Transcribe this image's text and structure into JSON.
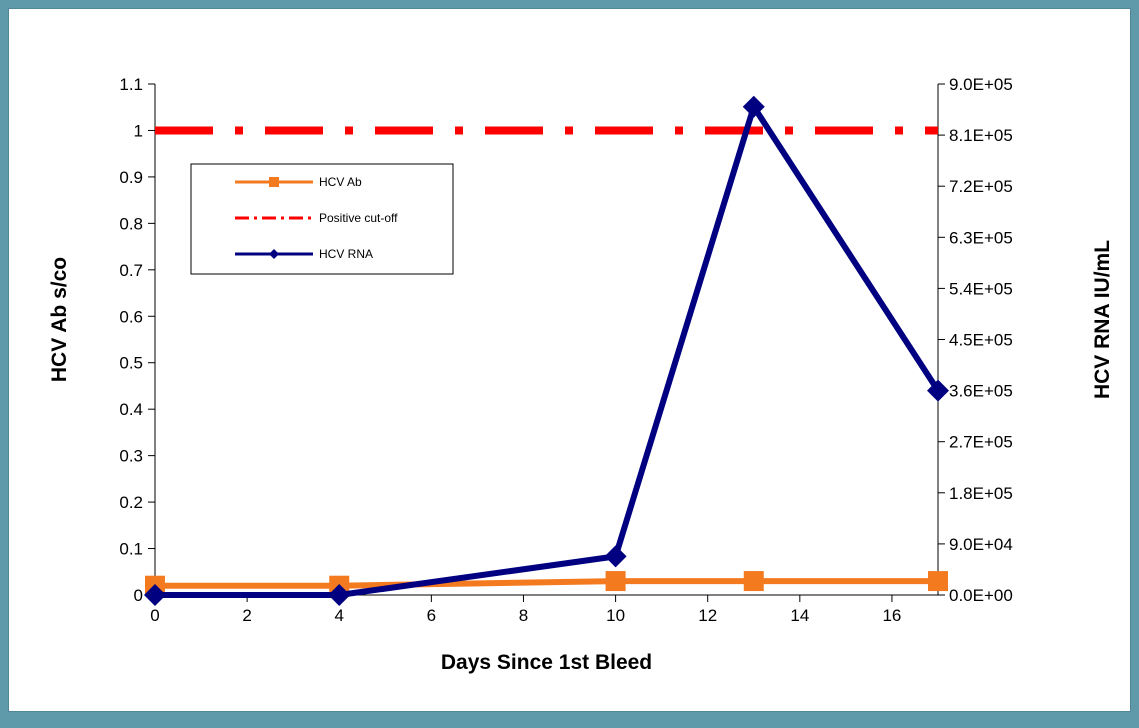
{
  "chart_data": {
    "type": "line",
    "title": "",
    "xlabel": "Days Since 1st Bleed",
    "ylabel": "HCV Ab s/co",
    "y2label": "HCV RNA IU/mL",
    "xlim": [
      0,
      17
    ],
    "ylim": [
      0,
      1.1
    ],
    "y2lim": [
      0,
      900000
    ],
    "x_ticks": [
      0,
      2,
      4,
      6,
      8,
      10,
      12,
      14,
      16
    ],
    "y_ticks": [
      0,
      0.1,
      0.2,
      0.3,
      0.4,
      0.5,
      0.6,
      0.7,
      0.8,
      0.9,
      1,
      1.1
    ],
    "y_tick_labels": [
      "0",
      "0.1",
      "0.2",
      "0.3",
      "0.4",
      "0.5",
      "0.6",
      "0.7",
      "0.8",
      "0.9",
      "1",
      "1.1"
    ],
    "y2_ticks": [
      0,
      90000,
      180000,
      270000,
      360000,
      450000,
      540000,
      630000,
      720000,
      810000,
      900000
    ],
    "y2_tick_labels": [
      "0.0E+00",
      "9.0E+04",
      "1.8E+05",
      "2.7E+05",
      "3.6E+05",
      "4.5E+05",
      "5.4E+05",
      "6.3E+05",
      "7.2E+05",
      "8.1E+05",
      "9.0E+05"
    ],
    "grid": false,
    "legend_position": "upper-left",
    "series": [
      {
        "name": "HCV Ab",
        "axis": "left",
        "color": "#f47a20",
        "marker": "square",
        "x": [
          0,
          4,
          10,
          13,
          17
        ],
        "y": [
          0.02,
          0.02,
          0.03,
          0.03,
          0.03
        ]
      },
      {
        "name": "Positive cut-off",
        "axis": "left",
        "color": "#ff0000",
        "style": "dash-dot",
        "x": [
          0,
          17
        ],
        "y": [
          1,
          1
        ]
      },
      {
        "name": "HCV RNA",
        "axis": "right",
        "color": "#000080",
        "marker": "diamond",
        "x": [
          0,
          4,
          10,
          13,
          17
        ],
        "y": [
          0,
          0,
          68000,
          860000,
          360000
        ]
      }
    ]
  }
}
